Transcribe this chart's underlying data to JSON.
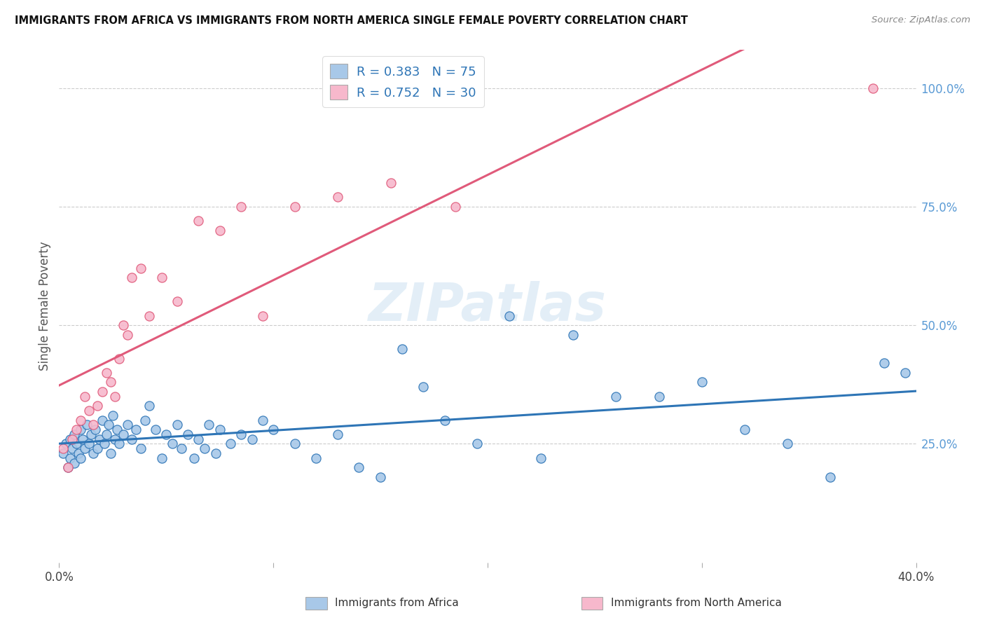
{
  "title": "IMMIGRANTS FROM AFRICA VS IMMIGRANTS FROM NORTH AMERICA SINGLE FEMALE POVERTY CORRELATION CHART",
  "source": "Source: ZipAtlas.com",
  "ylabel": "Single Female Poverty",
  "ylabel_right_ticks": [
    "100.0%",
    "75.0%",
    "50.0%",
    "25.0%"
  ],
  "ylabel_right_values": [
    1.0,
    0.75,
    0.5,
    0.25
  ],
  "xlim": [
    0.0,
    0.4
  ],
  "ylim": [
    0.0,
    1.08
  ],
  "R_africa": 0.383,
  "N_africa": 75,
  "R_namerica": 0.752,
  "N_namerica": 30,
  "color_africa": "#a8c8e8",
  "color_namerica": "#f7b8cc",
  "line_color_africa": "#2e75b6",
  "line_color_namerica": "#e05a7a",
  "legend_label_africa": "Immigrants from Africa",
  "legend_label_namerica": "Immigrants from North America",
  "watermark": "ZIPatlas",
  "africa_x": [
    0.002,
    0.003,
    0.004,
    0.005,
    0.005,
    0.006,
    0.007,
    0.007,
    0.008,
    0.009,
    0.01,
    0.01,
    0.011,
    0.012,
    0.013,
    0.014,
    0.015,
    0.016,
    0.017,
    0.018,
    0.019,
    0.02,
    0.021,
    0.022,
    0.023,
    0.024,
    0.025,
    0.026,
    0.027,
    0.028,
    0.03,
    0.032,
    0.034,
    0.036,
    0.038,
    0.04,
    0.042,
    0.045,
    0.048,
    0.05,
    0.053,
    0.055,
    0.057,
    0.06,
    0.063,
    0.065,
    0.068,
    0.07,
    0.073,
    0.075,
    0.08,
    0.085,
    0.09,
    0.095,
    0.1,
    0.11,
    0.12,
    0.13,
    0.14,
    0.15,
    0.16,
    0.17,
    0.18,
    0.195,
    0.21,
    0.225,
    0.24,
    0.26,
    0.28,
    0.3,
    0.32,
    0.34,
    0.36,
    0.385,
    0.395
  ],
  "africa_y": [
    0.23,
    0.25,
    0.2,
    0.22,
    0.26,
    0.24,
    0.21,
    0.27,
    0.25,
    0.23,
    0.28,
    0.22,
    0.26,
    0.24,
    0.29,
    0.25,
    0.27,
    0.23,
    0.28,
    0.24,
    0.26,
    0.3,
    0.25,
    0.27,
    0.29,
    0.23,
    0.31,
    0.26,
    0.28,
    0.25,
    0.27,
    0.29,
    0.26,
    0.28,
    0.24,
    0.3,
    0.33,
    0.28,
    0.22,
    0.27,
    0.25,
    0.29,
    0.24,
    0.27,
    0.22,
    0.26,
    0.24,
    0.29,
    0.23,
    0.28,
    0.25,
    0.27,
    0.26,
    0.3,
    0.28,
    0.25,
    0.22,
    0.27,
    0.2,
    0.18,
    0.45,
    0.37,
    0.3,
    0.25,
    0.52,
    0.22,
    0.48,
    0.35,
    0.35,
    0.38,
    0.28,
    0.25,
    0.18,
    0.42,
    0.4
  ],
  "namerica_x": [
    0.002,
    0.004,
    0.006,
    0.008,
    0.01,
    0.012,
    0.014,
    0.016,
    0.018,
    0.02,
    0.022,
    0.024,
    0.026,
    0.028,
    0.03,
    0.032,
    0.034,
    0.038,
    0.042,
    0.048,
    0.055,
    0.065,
    0.075,
    0.085,
    0.095,
    0.11,
    0.13,
    0.155,
    0.185,
    0.38
  ],
  "namerica_y": [
    0.24,
    0.2,
    0.26,
    0.28,
    0.3,
    0.35,
    0.32,
    0.29,
    0.33,
    0.36,
    0.4,
    0.38,
    0.35,
    0.43,
    0.5,
    0.48,
    0.6,
    0.62,
    0.52,
    0.6,
    0.55,
    0.72,
    0.7,
    0.75,
    0.52,
    0.75,
    0.77,
    0.8,
    0.75,
    1.0
  ]
}
